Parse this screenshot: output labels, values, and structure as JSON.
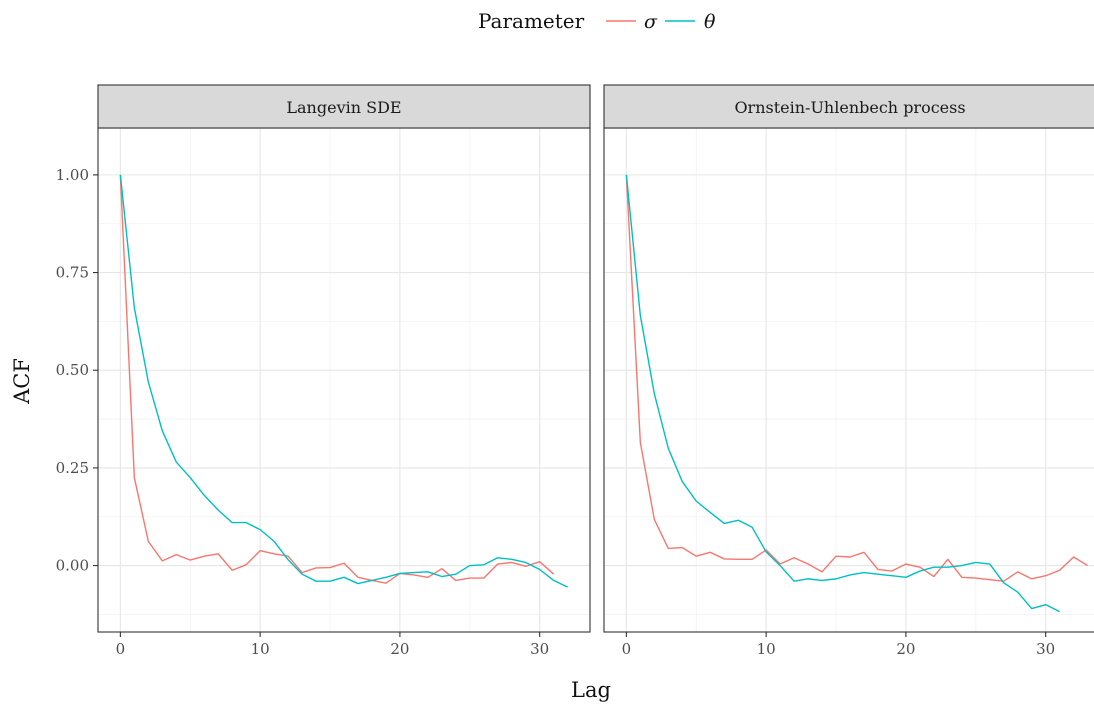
{
  "legend": {
    "title": "Parameter",
    "items": [
      {
        "label": "σ",
        "color": "#F8766D"
      },
      {
        "label": "θ",
        "color": "#00BFC4"
      }
    ]
  },
  "axes": {
    "xlabel": "Lag",
    "ylabel": "ACF"
  },
  "chart_data": {
    "type": "line",
    "facet_layout": "two panels side by side, legend on top",
    "xlim": [
      -1.6,
      33.6
    ],
    "ylim": [
      -0.17,
      1.12
    ],
    "x_ticks": [
      "0",
      "10",
      "20",
      "30"
    ],
    "y_ticks": [
      "0.00",
      "0.25",
      "0.50",
      "0.75",
      "1.00"
    ],
    "grid": true,
    "panels": [
      {
        "title": "Langevin SDE",
        "series": [
          {
            "name": "σ",
            "color": "#F8766D",
            "x": [
              0,
              1,
              2,
              3,
              4,
              5,
              6,
              7,
              8,
              9,
              10,
              11,
              12,
              13,
              14,
              15,
              16,
              17,
              18,
              19,
              20,
              21,
              22,
              23,
              24,
              25,
              26,
              27,
              28,
              29,
              30,
              31
            ],
            "y": [
              1.0,
              0.225,
              0.062,
              0.012,
              0.028,
              0.014,
              0.024,
              0.03,
              -0.012,
              0.002,
              0.038,
              0.03,
              0.024,
              -0.018,
              -0.006,
              -0.005,
              0.006,
              -0.03,
              -0.038,
              -0.045,
              -0.02,
              -0.024,
              -0.03,
              -0.008,
              -0.038,
              -0.032,
              -0.032,
              0.004,
              0.008,
              -0.002,
              0.01,
              -0.022
            ]
          },
          {
            "name": "θ",
            "color": "#00BFC4",
            "x": [
              0,
              1,
              2,
              3,
              4,
              5,
              6,
              7,
              8,
              9,
              10,
              11,
              12,
              13,
              14,
              15,
              16,
              17,
              18,
              19,
              20,
              21,
              22,
              23,
              24,
              25,
              26,
              27,
              28,
              29,
              30,
              31,
              32
            ],
            "y": [
              1.0,
              0.66,
              0.47,
              0.345,
              0.265,
              0.225,
              0.18,
              0.142,
              0.11,
              0.11,
              0.092,
              0.062,
              0.015,
              -0.022,
              -0.04,
              -0.04,
              -0.03,
              -0.046,
              -0.038,
              -0.03,
              -0.02,
              -0.018,
              -0.016,
              -0.028,
              -0.022,
              0.0,
              0.002,
              0.02,
              0.016,
              0.008,
              -0.01,
              -0.038,
              -0.055
            ]
          }
        ]
      },
      {
        "title": "Ornstein-Uhlenbech process",
        "series": [
          {
            "name": "σ",
            "color": "#F8766D",
            "x": [
              0,
              1,
              2,
              3,
              4,
              5,
              6,
              7,
              8,
              9,
              10,
              11,
              12,
              13,
              14,
              15,
              16,
              17,
              18,
              19,
              20,
              21,
              22,
              23,
              24,
              25,
              26,
              27,
              28,
              29,
              30,
              31,
              32,
              33
            ],
            "y": [
              1.0,
              0.315,
              0.118,
              0.044,
              0.046,
              0.024,
              0.034,
              0.017,
              0.016,
              0.016,
              0.04,
              0.004,
              0.02,
              0.004,
              -0.016,
              0.024,
              0.022,
              0.034,
              -0.01,
              -0.014,
              0.004,
              -0.004,
              -0.028,
              0.016,
              -0.03,
              -0.032,
              -0.036,
              -0.04,
              -0.016,
              -0.034,
              -0.026,
              -0.012,
              0.022,
              0.0
            ]
          },
          {
            "name": "θ",
            "color": "#00BFC4",
            "x": [
              0,
              1,
              2,
              3,
              4,
              5,
              6,
              7,
              8,
              9,
              10,
              11,
              12,
              13,
              14,
              15,
              16,
              17,
              18,
              19,
              20,
              21,
              22,
              23,
              24,
              25,
              26,
              27,
              28,
              29,
              30,
              31
            ],
            "y": [
              1.0,
              0.64,
              0.44,
              0.3,
              0.215,
              0.165,
              0.136,
              0.108,
              0.116,
              0.098,
              0.035,
              0.0,
              -0.04,
              -0.034,
              -0.038,
              -0.034,
              -0.024,
              -0.018,
              -0.022,
              -0.026,
              -0.03,
              -0.014,
              -0.004,
              -0.004,
              0.0,
              0.008,
              0.004,
              -0.044,
              -0.068,
              -0.11,
              -0.1,
              -0.118
            ]
          }
        ]
      }
    ]
  }
}
